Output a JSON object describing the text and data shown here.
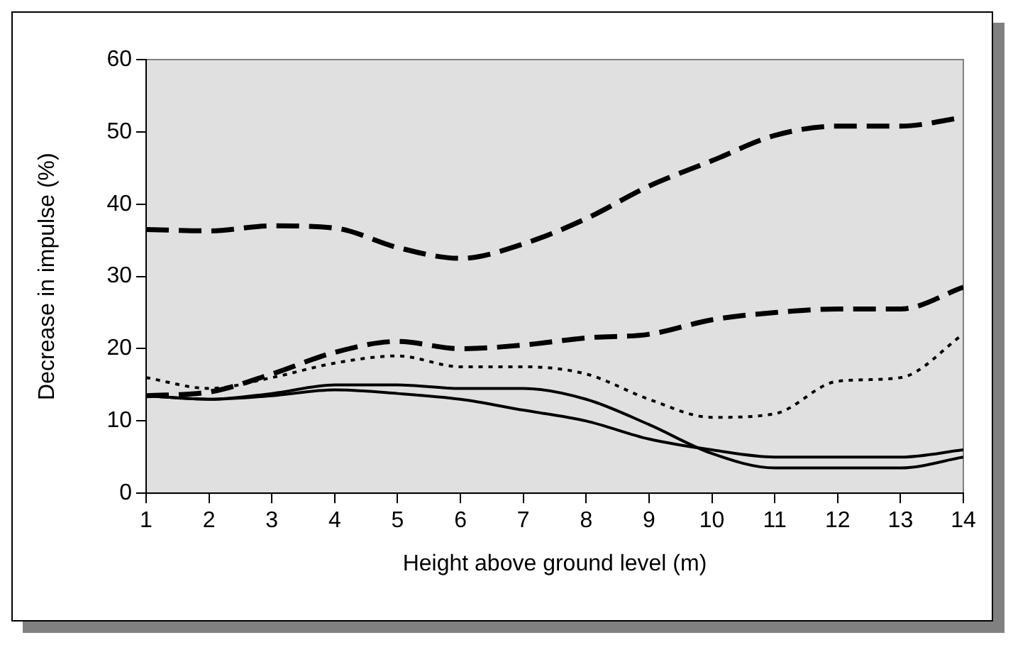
{
  "chart_data": {
    "type": "line",
    "xlabel": "Height above ground level (m)",
    "ylabel": "Decrease in impulse (%)",
    "x": [
      1,
      2,
      3,
      4,
      5,
      6,
      7,
      8,
      9,
      10,
      11,
      12,
      13,
      14
    ],
    "xlim": [
      1,
      14
    ],
    "xticks": [
      1,
      2,
      3,
      4,
      5,
      6,
      7,
      8,
      9,
      10,
      11,
      12,
      13,
      14
    ],
    "ylim": [
      0,
      60
    ],
    "yticks": [
      0,
      10,
      20,
      30,
      40,
      50,
      60
    ],
    "grid": false,
    "legend": false,
    "marker": "none",
    "series": [
      {
        "color": "#000000",
        "line_style": "dashed",
        "values": [
          36.5,
          36.3,
          37,
          36.7,
          34,
          32.5,
          34.5,
          38,
          42.5,
          46,
          49.5,
          50.8,
          50.8,
          52
        ]
      },
      {
        "color": "#000000",
        "line_style": "dashed",
        "values": [
          13.5,
          14,
          16.5,
          19.5,
          21,
          20,
          20.5,
          21.5,
          22,
          24,
          25,
          25.5,
          25.5,
          28.5
        ]
      },
      {
        "color": "#000000",
        "line_style": "dotted",
        "values": [
          16,
          14.5,
          16,
          18,
          19,
          17.5,
          17.5,
          16.5,
          13,
          10.5,
          11,
          15.5,
          16,
          22
        ]
      },
      {
        "color": "#000000",
        "line_style": "solid",
        "values": [
          13.5,
          13,
          13.8,
          15,
          15,
          14.5,
          14.5,
          13,
          9.5,
          5.5,
          3.5,
          3.5,
          3.5,
          5
        ]
      },
      {
        "color": "#000000",
        "line_style": "solid",
        "values": [
          13.5,
          13,
          13.5,
          14.3,
          13.8,
          13,
          11.5,
          10,
          7.5,
          6,
          5,
          5,
          5,
          6
        ]
      }
    ]
  }
}
